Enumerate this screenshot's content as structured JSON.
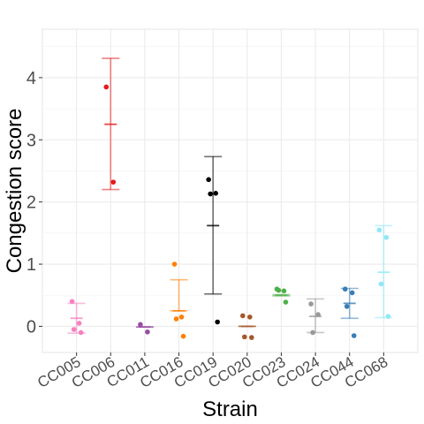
{
  "chart_data": {
    "type": "scatter",
    "title": "",
    "xlabel": "Strain",
    "ylabel": "Congestion score",
    "ylim": [
      -0.42,
      4.78
    ],
    "y_ticks": [
      0,
      1,
      2,
      3,
      4
    ],
    "grid": true,
    "legend": "none",
    "categories": [
      "CC005",
      "CC006",
      "CC011",
      "CC016",
      "CC019",
      "CC020",
      "CC023",
      "CC024",
      "CC044",
      "CC068"
    ],
    "series": [
      {
        "color": "#F781BF",
        "points": [
          0.4,
          0.05,
          -0.05,
          -0.1
        ],
        "mean": 0.13,
        "lower": -0.11,
        "upper": 0.37
      },
      {
        "color": "#E41A1C",
        "points": [
          3.85,
          2.32
        ],
        "mean": 3.25,
        "lower": 2.2,
        "upper": 4.31
      },
      {
        "color": "#984EA3",
        "points": [
          0.03,
          -0.09
        ],
        "mean": -0.01,
        "lower": -0.01,
        "upper": -0.01
      },
      {
        "color": "#FF7F00",
        "points": [
          1.0,
          0.15,
          0.12,
          -0.16
        ],
        "mean": 0.25,
        "lower": 0.25,
        "upper": 0.75
      },
      {
        "color": "#000000",
        "points": [
          2.36,
          2.14,
          2.13,
          0.07
        ],
        "mean": 1.62,
        "lower": 0.52,
        "upper": 2.73
      },
      {
        "color": "#A65628",
        "points": [
          0.17,
          0.15,
          -0.17,
          -0.18
        ],
        "mean": 0.0,
        "lower": 0.0,
        "upper": 0.0
      },
      {
        "color": "#4DAF4A",
        "points": [
          0.6,
          0.57,
          0.58,
          0.39
        ],
        "mean": 0.5,
        "lower": 0.49,
        "upper": 0.51
      },
      {
        "color": "#999999",
        "points": [
          0.36,
          0.19,
          -0.1
        ],
        "mean": 0.16,
        "lower": -0.1,
        "upper": 0.44
      },
      {
        "color": "#377EB8",
        "points": [
          0.6,
          0.54,
          0.32,
          -0.15
        ],
        "mean": 0.37,
        "lower": 0.13,
        "upper": 0.61
      },
      {
        "color": "#8FE8F8",
        "points": [
          1.55,
          1.43,
          0.68,
          0.16
        ],
        "mean": 0.87,
        "lower": 0.14,
        "upper": 1.62
      }
    ]
  }
}
